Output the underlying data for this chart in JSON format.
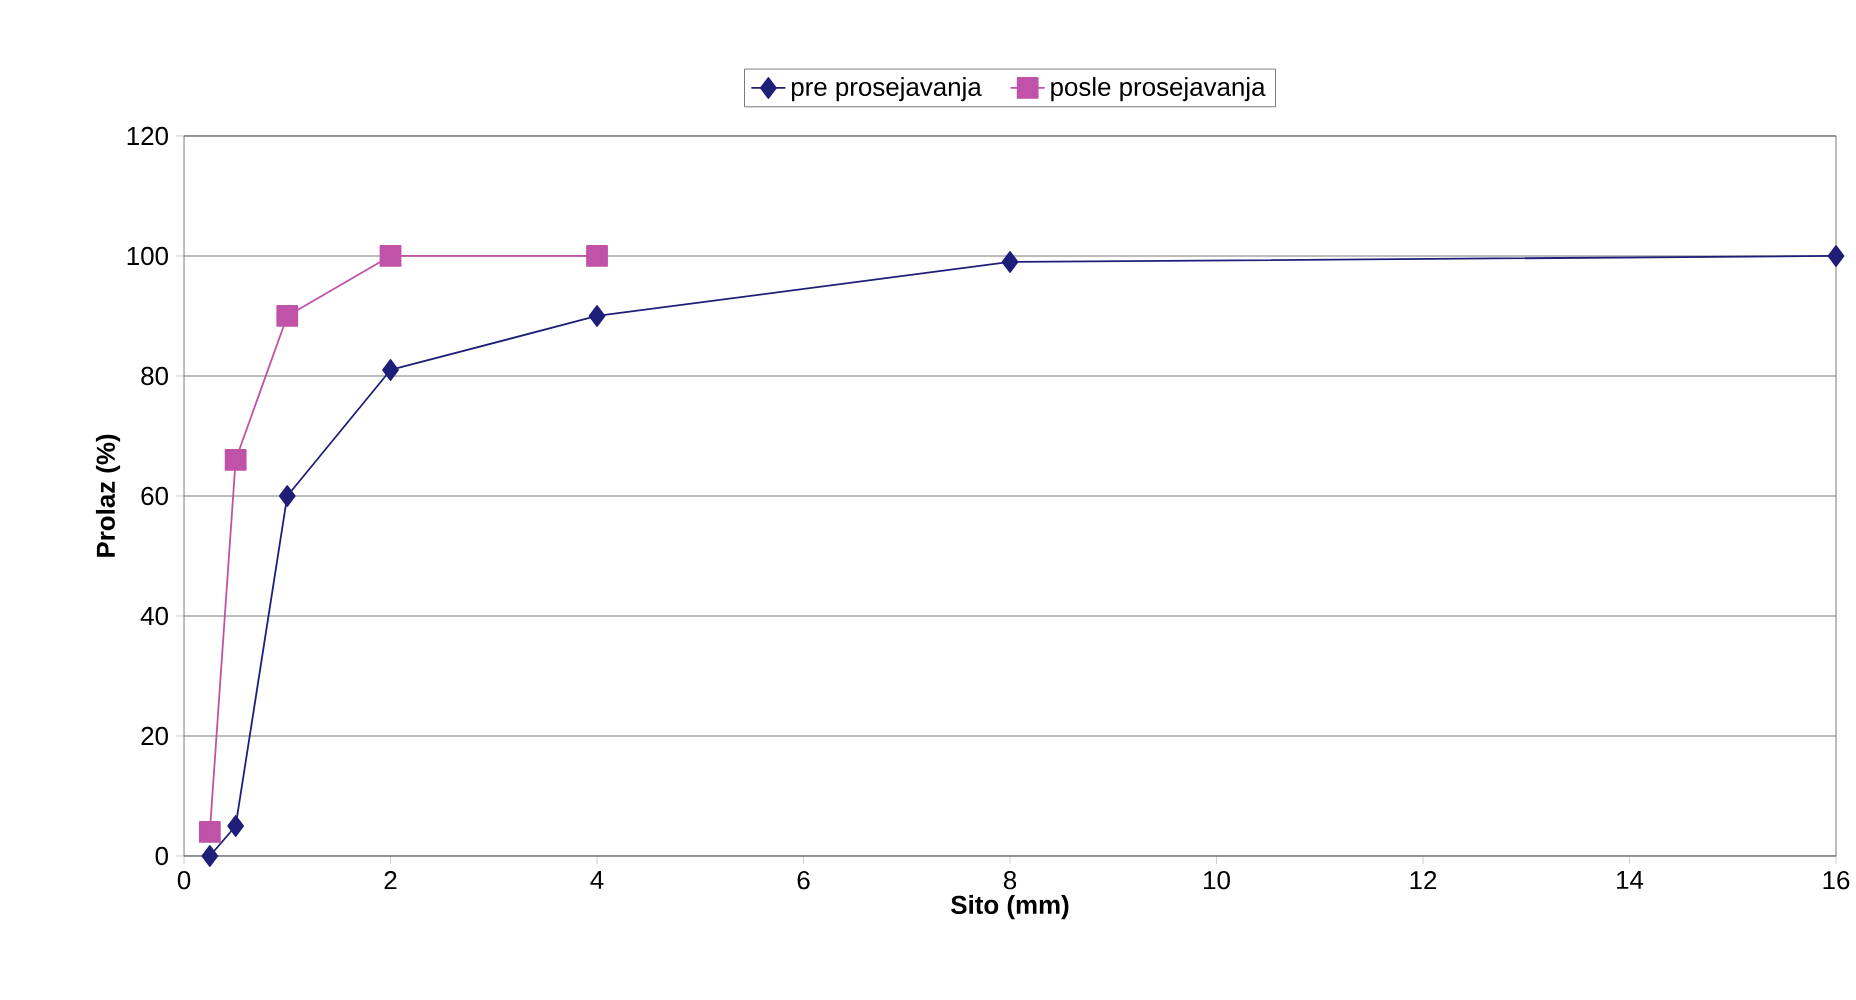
{
  "chart_data": {
    "type": "line",
    "xlabel": "Sito (mm)",
    "ylabel": "Prolaz (%)",
    "xlim": [
      0,
      16
    ],
    "xticks": [
      0,
      2,
      4,
      6,
      8,
      10,
      12,
      14,
      16
    ],
    "ylim": [
      0,
      120
    ],
    "yticks": [
      0,
      20,
      40,
      60,
      80,
      100,
      120
    ],
    "grid": "y",
    "legend": "top",
    "line_style": "solid",
    "series": [
      {
        "name": "pre prosejavanja",
        "color": "#1f1f7a",
        "marker": "diamond",
        "x": [
          0.25,
          0.5,
          1,
          2,
          4,
          8,
          16
        ],
        "values": [
          0,
          5,
          60,
          81,
          90,
          99,
          100
        ]
      },
      {
        "name": "posle prosejavanja",
        "color": "#c052a8",
        "marker": "square",
        "x": [
          0.25,
          0.5,
          1,
          2,
          4
        ],
        "values": [
          4,
          66,
          90,
          100,
          100
        ]
      }
    ]
  }
}
